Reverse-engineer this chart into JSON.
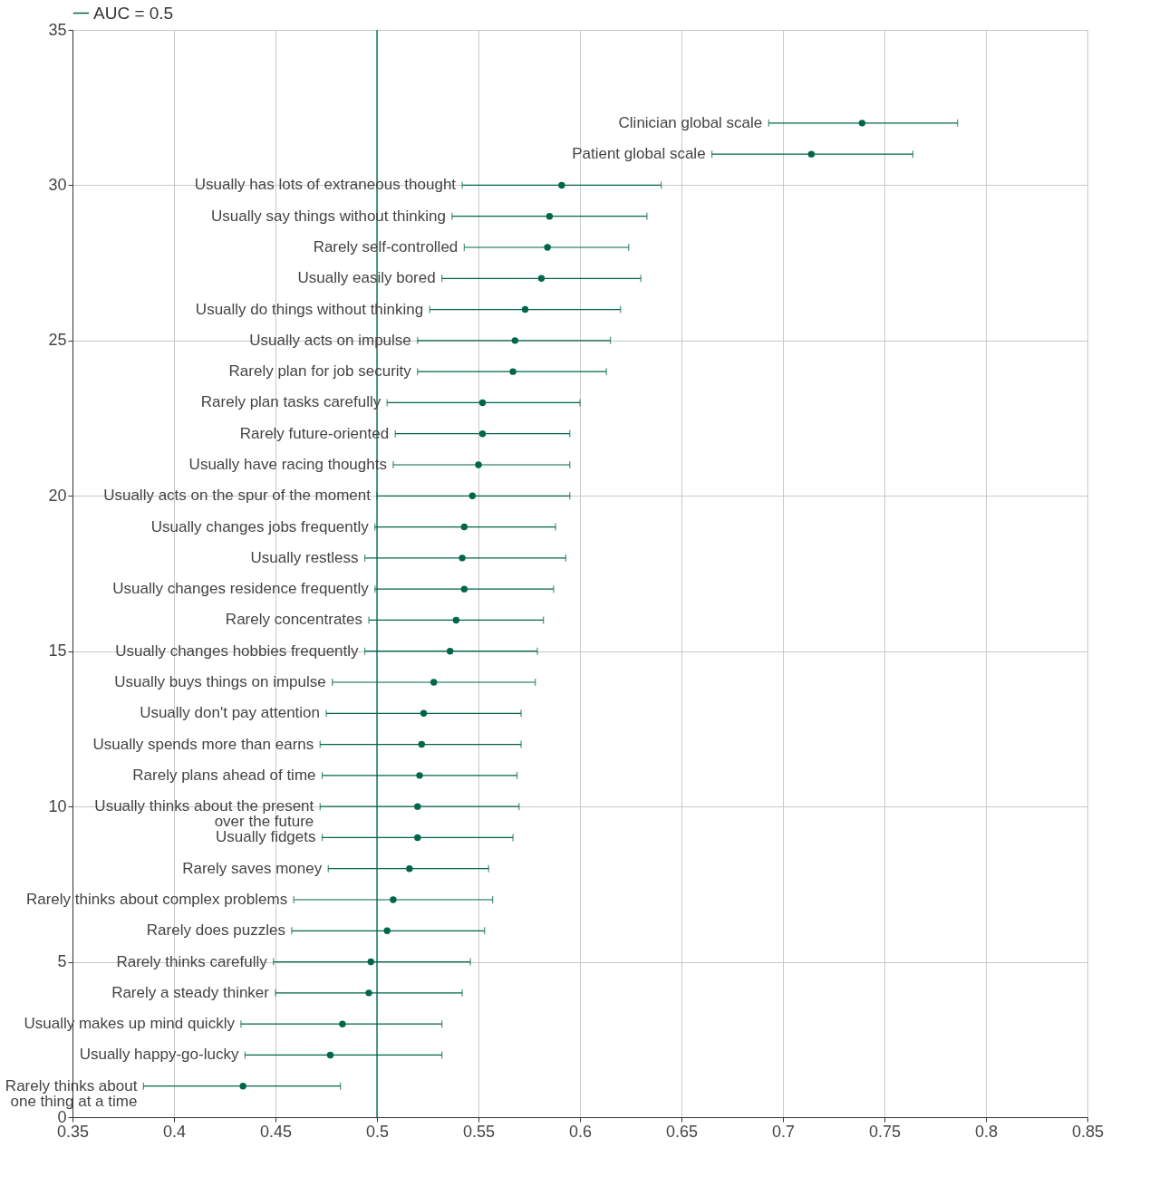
{
  "chart_data": {
    "type": "scatter",
    "marker": "circle",
    "grid": true,
    "legend": "top",
    "xlim": [
      0.35,
      0.85
    ],
    "xticks": [
      0.35,
      0.4,
      0.45,
      0.5,
      0.55,
      0.6,
      0.65,
      0.7,
      0.75,
      0.8,
      0.85
    ],
    "ylim": [
      0,
      35
    ],
    "yticks": [
      0,
      5,
      10,
      15,
      20,
      25,
      30,
      35
    ],
    "series": [
      {
        "color": "#00664a",
        "x": [
          0.739,
          0.714,
          0.591,
          0.585,
          0.584,
          0.581,
          0.573,
          0.568,
          0.567,
          0.552,
          0.552,
          0.55,
          0.547,
          0.543,
          0.542,
          0.543,
          0.539,
          0.536,
          0.528,
          0.523,
          0.522,
          0.521,
          0.52,
          0.52,
          0.516,
          0.508,
          0.505,
          0.497,
          0.496,
          0.483,
          0.477,
          0.434
        ],
        "values": [
          32,
          31,
          30,
          29,
          28,
          27,
          26,
          25,
          24,
          23,
          22,
          21,
          20,
          19,
          18,
          17,
          16,
          15,
          14,
          13,
          12,
          11,
          10,
          9,
          8,
          7,
          6,
          5,
          4,
          3,
          2,
          1
        ],
        "xerrors": [
          [
            0.693,
            0.786
          ],
          [
            0.665,
            0.764
          ],
          [
            0.542,
            0.64
          ],
          [
            0.537,
            0.633
          ],
          [
            0.543,
            0.624
          ],
          [
            0.532,
            0.63
          ],
          [
            0.526,
            0.62
          ],
          [
            0.52,
            0.615
          ],
          [
            0.52,
            0.613
          ],
          [
            0.505,
            0.6
          ],
          [
            0.509,
            0.595
          ],
          [
            0.508,
            0.595
          ],
          [
            0.5,
            0.595
          ],
          [
            0.499,
            0.588
          ],
          [
            0.494,
            0.593
          ],
          [
            0.499,
            0.587
          ],
          [
            0.496,
            0.582
          ],
          [
            0.494,
            0.579
          ],
          [
            0.478,
            0.578
          ],
          [
            0.475,
            0.571
          ],
          [
            0.472,
            0.571
          ],
          [
            0.473,
            0.569
          ],
          [
            0.472,
            0.57
          ],
          [
            0.473,
            0.567
          ],
          [
            0.476,
            0.555
          ],
          [
            0.459,
            0.557
          ],
          [
            0.458,
            0.553
          ],
          [
            0.449,
            0.546
          ],
          [
            0.45,
            0.542
          ],
          [
            0.433,
            0.532
          ],
          [
            0.435,
            0.532
          ],
          [
            0.385,
            0.482
          ]
        ]
      }
    ],
    "ref_lines": [
      {
        "axis": "x",
        "value": 0.5,
        "label": "AUC = 0.5",
        "color": "#00664a"
      }
    ],
    "annotations": [
      {
        "text": "Clinician global scale",
        "x": 0.693,
        "y": 32
      },
      {
        "text": "Patient global scale",
        "x": 0.665,
        "y": 31
      },
      {
        "text": "Usually has lots of extraneous thought",
        "x": 0.542,
        "y": 30
      },
      {
        "text": "Usually say things without thinking",
        "x": 0.537,
        "y": 29
      },
      {
        "text": "Rarely self-controlled",
        "x": 0.543,
        "y": 28
      },
      {
        "text": "Usually easily bored",
        "x": 0.532,
        "y": 27
      },
      {
        "text": "Usually do things without thinking",
        "x": 0.526,
        "y": 26
      },
      {
        "text": "Usually acts on impulse",
        "x": 0.52,
        "y": 25
      },
      {
        "text": "Rarely plan for job security",
        "x": 0.52,
        "y": 24
      },
      {
        "text": "Rarely plan tasks carefully",
        "x": 0.505,
        "y": 23
      },
      {
        "text": "Rarely future-oriented",
        "x": 0.509,
        "y": 22
      },
      {
        "text": "Usually have racing thoughts",
        "x": 0.508,
        "y": 21
      },
      {
        "text": "Usually acts on the spur of the moment",
        "x": 0.5,
        "y": 20
      },
      {
        "text": "Usually changes jobs frequently",
        "x": 0.499,
        "y": 19
      },
      {
        "text": "Usually restless",
        "x": 0.494,
        "y": 18
      },
      {
        "text": "Usually changes residence frequently",
        "x": 0.499,
        "y": 17
      },
      {
        "text": "Rarely concentrates",
        "x": 0.496,
        "y": 16
      },
      {
        "text": "Usually changes hobbies frequently",
        "x": 0.494,
        "y": 15
      },
      {
        "text": "Usually buys things on impulse",
        "x": 0.478,
        "y": 14
      },
      {
        "text": "Usually don't pay attention",
        "x": 0.475,
        "y": 13
      },
      {
        "text": "Usually spends more than earns",
        "x": 0.472,
        "y": 12
      },
      {
        "text": "Rarely plans ahead of time",
        "x": 0.473,
        "y": 11
      },
      {
        "text": "Usually thinks about the present\nover the future",
        "x": 0.472,
        "y": 10
      },
      {
        "text": "Usually fidgets",
        "x": 0.473,
        "y": 9
      },
      {
        "text": "Rarely saves money",
        "x": 0.476,
        "y": 8
      },
      {
        "text": "Rarely thinks about complex problems",
        "x": 0.459,
        "y": 7
      },
      {
        "text": "Rarely does puzzles",
        "x": 0.458,
        "y": 6
      },
      {
        "text": "Rarely thinks carefully",
        "x": 0.449,
        "y": 5
      },
      {
        "text": "Rarely a steady thinker",
        "x": 0.45,
        "y": 4
      },
      {
        "text": "Usually makes up mind quickly",
        "x": 0.433,
        "y": 3
      },
      {
        "text": "Usually happy-go-lucky",
        "x": 0.435,
        "y": 2
      },
      {
        "text": "Rarely thinks about\none thing at a time",
        "x": 0.385,
        "y": 1
      }
    ]
  }
}
